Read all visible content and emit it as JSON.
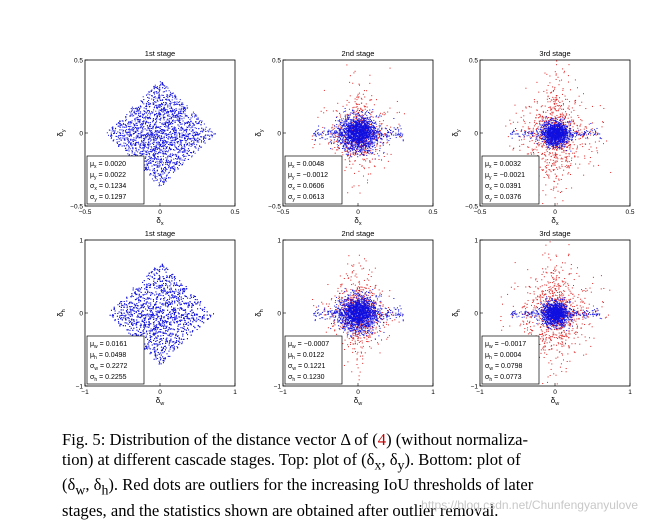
{
  "figure": {
    "panels": [
      {
        "id": "top-1",
        "title": "1st stage",
        "xlabel": "δ_x",
        "ylabel": "δ_y",
        "xlim": [
          -0.5,
          0.5
        ],
        "ylim": [
          -0.5,
          0.5
        ],
        "xticks": [
          "−0.5",
          "0",
          "0.5"
        ],
        "yticks": [
          "0.5",
          "0",
          "−0.5"
        ],
        "stats": [
          {
            "sym": "μ",
            "sub": "x",
            "val": "= 0.0020"
          },
          {
            "sym": "μ",
            "sub": "y",
            "val": "= 0.0022"
          },
          {
            "sym": "σ",
            "sub": "x",
            "val": "= 0.1234"
          },
          {
            "sym": "σ",
            "sub": "y",
            "val": "= 0.1297"
          }
        ],
        "spread": {
          "blue": 0.13,
          "diamond": 0.32,
          "red_count": 0,
          "blue_count": 2600
        }
      },
      {
        "id": "top-2",
        "title": "2nd stage",
        "xlabel": "δ_x",
        "ylabel": "δ_y",
        "xlim": [
          -0.5,
          0.5
        ],
        "ylim": [
          -0.5,
          0.5
        ],
        "xticks": [
          "−0.5",
          "0",
          "0.5"
        ],
        "yticks": [
          "0.5",
          "0",
          "−0.5"
        ],
        "stats": [
          {
            "sym": "μ",
            "sub": "x",
            "val": "= 0.0048"
          },
          {
            "sym": "μ",
            "sub": "y",
            "val": "= −0.0012"
          },
          {
            "sym": "σ",
            "sub": "x",
            "val": "= 0.0606"
          },
          {
            "sym": "σ",
            "sub": "y",
            "val": "= 0.0613"
          }
        ],
        "spread": {
          "blue": 0.06,
          "diamond": 0.0,
          "red_count": 600,
          "blue_count": 1800
        }
      },
      {
        "id": "top-3",
        "title": "3rd stage",
        "xlabel": "δ_x",
        "ylabel": "δ_y",
        "xlim": [
          -0.5,
          0.5
        ],
        "ylim": [
          -0.5,
          0.5
        ],
        "xticks": [
          "−0.5",
          "0",
          "0.5"
        ],
        "yticks": [
          "0.5",
          "0",
          "−0.5"
        ],
        "stats": [
          {
            "sym": "μ",
            "sub": "x",
            "val": "= 0.0032"
          },
          {
            "sym": "μ",
            "sub": "y",
            "val": "= −0.0021"
          },
          {
            "sym": "σ",
            "sub": "x",
            "val": "= 0.0391"
          },
          {
            "sym": "σ",
            "sub": "y",
            "val": "= 0.0376"
          }
        ],
        "spread": {
          "blue": 0.04,
          "diamond": 0.0,
          "red_count": 900,
          "blue_count": 1400
        }
      },
      {
        "id": "bottom-1",
        "title": "1st stage",
        "xlabel": "δ_w",
        "ylabel": "δ_h",
        "xlim": [
          -1,
          1
        ],
        "ylim": [
          -1,
          1
        ],
        "xticks": [
          "−1",
          "0",
          "1"
        ],
        "yticks": [
          "1",
          "0",
          "−1"
        ],
        "stats": [
          {
            "sym": "μ",
            "sub": "w",
            "val": "= 0.0161"
          },
          {
            "sym": "μ",
            "sub": "h",
            "val": "= 0.0498"
          },
          {
            "sym": "σ",
            "sub": "w",
            "val": "= 0.2272"
          },
          {
            "sym": "σ",
            "sub": "h",
            "val": "= 0.2255"
          }
        ],
        "spread": {
          "blue": 0.23,
          "diamond": 0.62,
          "red_count": 0,
          "blue_count": 2600
        }
      },
      {
        "id": "bottom-2",
        "title": "2nd stage",
        "xlabel": "δ_w",
        "ylabel": "δ_h",
        "xlim": [
          -1,
          1
        ],
        "ylim": [
          -1,
          1
        ],
        "xticks": [
          "−1",
          "0",
          "1"
        ],
        "yticks": [
          "1",
          "0",
          "−1"
        ],
        "stats": [
          {
            "sym": "μ",
            "sub": "w",
            "val": "= −0.0007"
          },
          {
            "sym": "μ",
            "sub": "h",
            "val": "= 0.0122"
          },
          {
            "sym": "σ",
            "sub": "w",
            "val": "= 0.1221"
          },
          {
            "sym": "σ",
            "sub": "h",
            "val": "= 0.1230"
          }
        ],
        "spread": {
          "blue": 0.12,
          "diamond": 0.0,
          "red_count": 700,
          "blue_count": 1800
        }
      },
      {
        "id": "bottom-3",
        "title": "3rd stage",
        "xlabel": "δ_w",
        "ylabel": "δ_h",
        "xlim": [
          -1,
          1
        ],
        "ylim": [
          -1,
          1
        ],
        "xticks": [
          "−1",
          "0",
          "1"
        ],
        "yticks": [
          "1",
          "0",
          "−1"
        ],
        "stats": [
          {
            "sym": "μ",
            "sub": "w",
            "val": "= −0.0017"
          },
          {
            "sym": "μ",
            "sub": "h",
            "val": "= 0.0004"
          },
          {
            "sym": "σ",
            "sub": "w",
            "val": "= 0.0798"
          },
          {
            "sym": "σ",
            "sub": "h",
            "val": "= 0.0773"
          }
        ],
        "spread": {
          "blue": 0.08,
          "diamond": 0.0,
          "red_count": 900,
          "blue_count": 1400
        }
      }
    ],
    "colors": {
      "inlier": "#1010e0",
      "outlier": "#e02020"
    }
  },
  "caption": {
    "line1": "Fig. 5: Distribution of the distance vector Δ of (",
    "ref": "4",
    "line1_end": ") (without normaliza-",
    "line2": "tion) at different cascade stages. Top: plot of (δ",
    "line2_sub1": "x",
    "line2_mid": ", δ",
    "line2_sub2": "y",
    "line2_end": "). Bottom: plot of",
    "line3": "(δ",
    "line3_sub1": "w",
    "line3_mid": ", δ",
    "line3_sub2": "h",
    "line3_end": "). Red dots are outliers for the increasing IoU thresholds of later",
    "line4": "stages, and the statistics shown are obtained after outlier removal."
  },
  "watermark": "https://blog.csdn.net/Chunfengyanyulove"
}
